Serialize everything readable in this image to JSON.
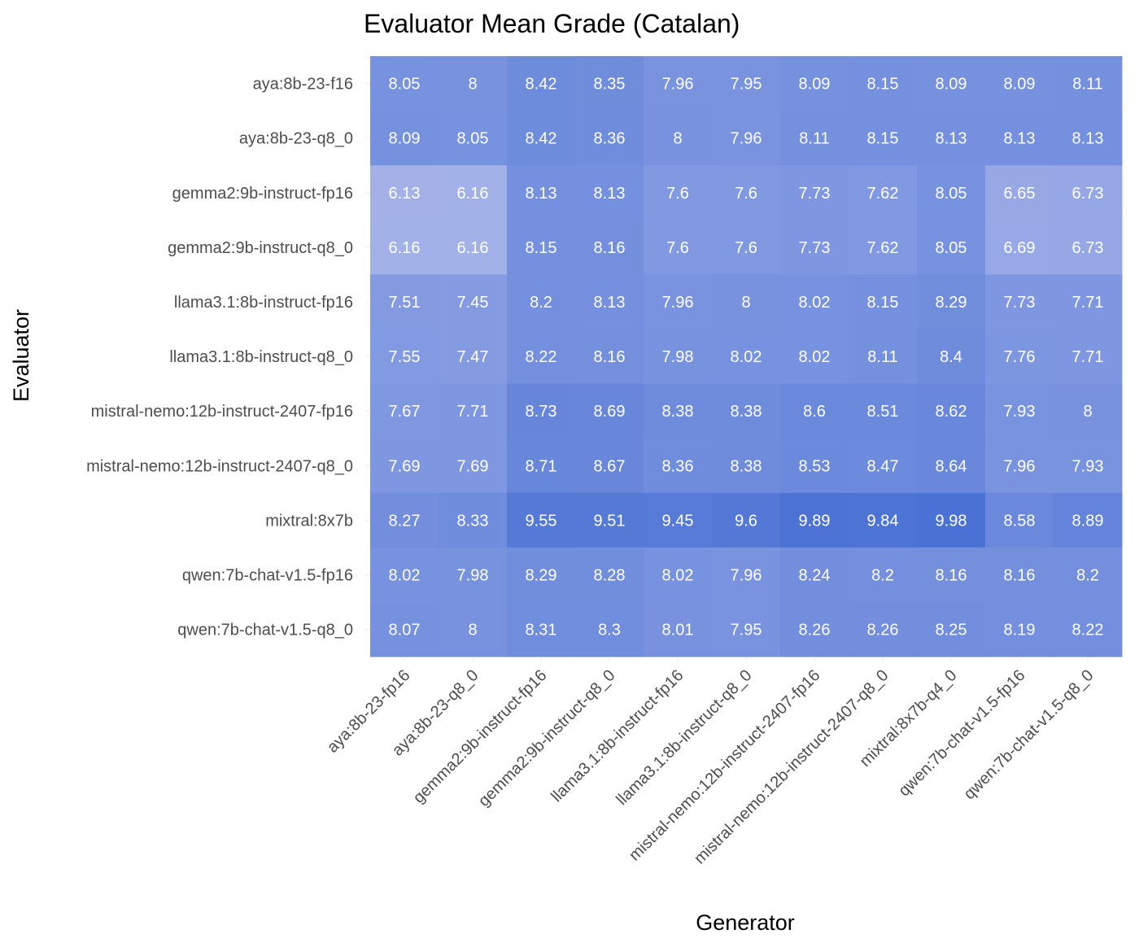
{
  "chart_data": {
    "type": "heatmap",
    "title": "Evaluator Mean Grade (Catalan)",
    "xlabel": "Generator",
    "ylabel": "Evaluator",
    "x_categories": [
      "aya:8b-23-fp16",
      "aya:8b-23-q8_0",
      "gemma2:9b-instruct-fp16",
      "gemma2:9b-instruct-q8_0",
      "llama3.1:8b-instruct-fp16",
      "llama3.1:8b-instruct-q8_0",
      "mistral-nemo:12b-instruct-2407-fp16",
      "mistral-nemo:12b-instruct-2407-q8_0",
      "mixtral:8x7b-q4_0",
      "qwen:7b-chat-v1.5-fp16",
      "qwen:7b-chat-v1.5-q8_0"
    ],
    "y_categories": [
      "aya:8b-23-f16",
      "aya:8b-23-q8_0",
      "gemma2:9b-instruct-fp16",
      "gemma2:9b-instruct-q8_0",
      "llama3.1:8b-instruct-fp16",
      "llama3.1:8b-instruct-q8_0",
      "mistral-nemo:12b-instruct-2407-fp16",
      "mistral-nemo:12b-instruct-2407-q8_0",
      "mixtral:8x7b",
      "qwen:7b-chat-v1.5-fp16",
      "qwen:7b-chat-v1.5-q8_0"
    ],
    "values": [
      [
        "8.05",
        "8",
        "8.42",
        "8.35",
        "7.96",
        "7.95",
        "8.09",
        "8.15",
        "8.09",
        "8.09",
        "8.11"
      ],
      [
        "8.09",
        "8.05",
        "8.42",
        "8.36",
        "8",
        "7.96",
        "8.11",
        "8.15",
        "8.13",
        "8.13",
        "8.13"
      ],
      [
        "6.13",
        "6.16",
        "8.13",
        "8.13",
        "7.6",
        "7.6",
        "7.73",
        "7.62",
        "8.05",
        "6.65",
        "6.73"
      ],
      [
        "6.16",
        "6.16",
        "8.15",
        "8.16",
        "7.6",
        "7.6",
        "7.73",
        "7.62",
        "8.05",
        "6.69",
        "6.73"
      ],
      [
        "7.51",
        "7.45",
        "8.2",
        "8.13",
        "7.96",
        "8",
        "8.02",
        "8.15",
        "8.29",
        "7.73",
        "7.71"
      ],
      [
        "7.55",
        "7.47",
        "8.22",
        "8.16",
        "7.98",
        "8.02",
        "8.02",
        "8.11",
        "8.4",
        "7.76",
        "7.71"
      ],
      [
        "7.67",
        "7.71",
        "8.73",
        "8.69",
        "8.38",
        "8.38",
        "8.6",
        "8.51",
        "8.62",
        "7.93",
        "8"
      ],
      [
        "7.69",
        "7.69",
        "8.71",
        "8.67",
        "8.36",
        "8.38",
        "8.53",
        "8.47",
        "8.64",
        "7.96",
        "7.93"
      ],
      [
        "8.27",
        "8.33",
        "9.55",
        "9.51",
        "9.45",
        "9.6",
        "9.89",
        "9.84",
        "9.98",
        "8.58",
        "8.89"
      ],
      [
        "8.02",
        "7.98",
        "8.29",
        "8.28",
        "8.02",
        "7.96",
        "8.24",
        "8.2",
        "8.16",
        "8.16",
        "8.2"
      ],
      [
        "8.07",
        "8",
        "8.31",
        "8.3",
        "8.01",
        "7.95",
        "8.26",
        "8.26",
        "8.25",
        "8.19",
        "8.22"
      ]
    ],
    "color_scale": {
      "low": "#a3b1e8",
      "high": "#4a72d4",
      "domain": [
        6.13,
        9.98
      ]
    },
    "legend": "none",
    "grid": true
  }
}
